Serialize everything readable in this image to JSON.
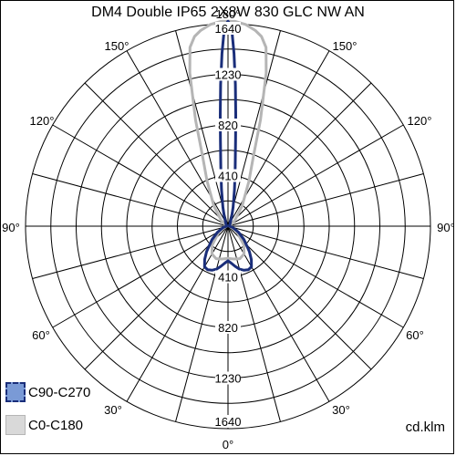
{
  "chart_data": {
    "type": "polar",
    "title": "DM4 Double IP65 2X8W 830 GLC NW AN",
    "unit_label": "cd.klm",
    "radial_ticks": [
      410,
      820,
      1230,
      1640
    ],
    "radial_max": 1640,
    "angle_labels": [
      "0°",
      "30°",
      "60°",
      "90°",
      "120°",
      "150°",
      "180°",
      "150°",
      "120°",
      "90°",
      "60°",
      "30°"
    ],
    "grid": true,
    "legend_position": "bottom-left",
    "colors": {
      "c90": "#1a2e7a",
      "c90_fill": "#7a9ad6",
      "c0": "#b5b5b5",
      "c0_fill": "#d9d9d9",
      "grid": "#000000"
    },
    "series": [
      {
        "name": "C90-C270",
        "angles": [
          0,
          5,
          10,
          15,
          20,
          25,
          30,
          35,
          40,
          50,
          60,
          75,
          90,
          110,
          130,
          150,
          160,
          165,
          170,
          173,
          175,
          176,
          177,
          178,
          179,
          180
        ],
        "values": [
          280,
          300,
          330,
          360,
          380,
          390,
          380,
          330,
          270,
          170,
          100,
          40,
          10,
          10,
          20,
          40,
          90,
          160,
          300,
          480,
          700,
          900,
          1150,
          1400,
          1620,
          1660
        ]
      },
      {
        "name": "C0-C180",
        "angles": [
          0,
          10,
          20,
          30,
          40,
          60,
          90,
          110,
          130,
          145,
          155,
          160,
          163,
          166,
          168,
          170,
          172,
          175,
          178,
          180
        ],
        "values": [
          260,
          270,
          280,
          260,
          200,
          80,
          10,
          20,
          70,
          200,
          400,
          600,
          900,
          1280,
          1480,
          1560,
          1600,
          1640,
          1660,
          1660
        ]
      }
    ]
  }
}
